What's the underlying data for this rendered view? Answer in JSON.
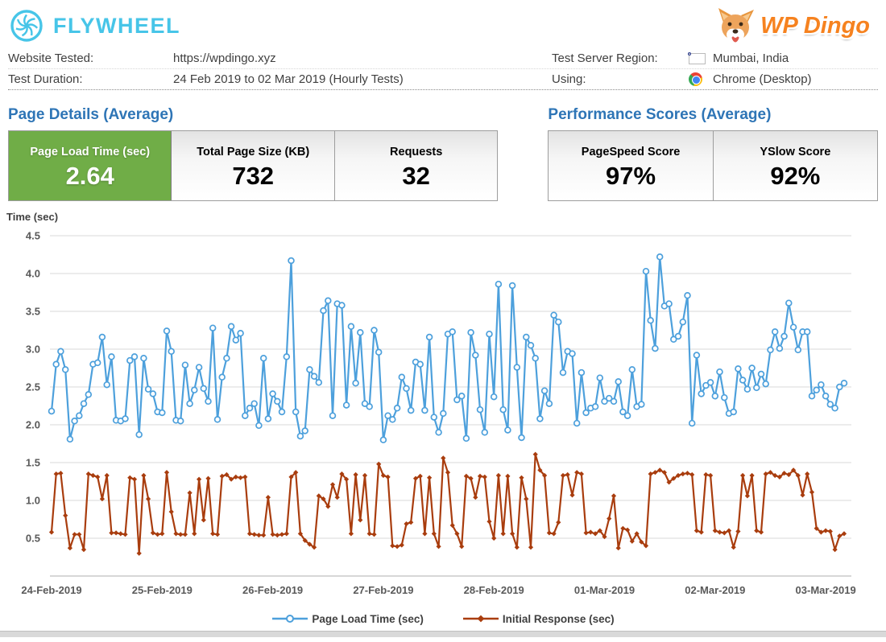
{
  "header": {
    "flywheel_logo_text": "FLYWHEEL",
    "wpdingo_logo_text": "WP Dingo",
    "info": {
      "website_label": "Website Tested:",
      "website_value": "https://wpdingo.xyz",
      "duration_label": "Test Duration:",
      "duration_value": "24 Feb 2019 to 02 Mar 2019 (Hourly Tests)",
      "region_label": "Test Server Region:",
      "region_icon": "india-flag-icon",
      "region_value": "Mumbai, India",
      "using_label": "Using:",
      "using_icon": "chrome-icon",
      "using_value": "Chrome (Desktop)"
    }
  },
  "page_details": {
    "title": "Page Details (Average)",
    "cards": [
      {
        "label": "Page Load Time (sec)",
        "value": "2.64",
        "highlight": true
      },
      {
        "label": "Total Page Size (KB)",
        "value": "732",
        "highlight": false
      },
      {
        "label": "Requests",
        "value": "32",
        "highlight": false
      }
    ]
  },
  "performance_scores": {
    "title": "Performance Scores (Average)",
    "cards": [
      {
        "label": "PageSpeed Score",
        "value": "97%"
      },
      {
        "label": "YSlow Score",
        "value": "92%"
      }
    ]
  },
  "colors": {
    "flywheel_blue": "#47c5e8",
    "dingo_orange": "#f6821f",
    "heading_blue": "#2e75b6",
    "card_green": "#70ad47",
    "axis_text": "#595959",
    "gridline": "#d9d9d9",
    "series_blue": "#4da0dc",
    "series_red": "#a93d0e"
  },
  "chart_data": {
    "type": "line",
    "title": "",
    "ylabel": "Time (sec)",
    "xlabel": "",
    "grid": "horizontal",
    "legend_position": "bottom",
    "ylim": [
      0,
      4.7
    ],
    "y_ticks": [
      "0.5",
      "1.0",
      "1.5",
      "2.0",
      "2.5",
      "3.0",
      "3.5",
      "4.0",
      "4.5"
    ],
    "x_tick_labels": [
      "24-Feb-2019",
      "25-Feb-2019",
      "26-Feb-2019",
      "27-Feb-2019",
      "28-Feb-2019",
      "01-Mar-2019",
      "02-Mar-2019",
      "03-Mar-2019"
    ],
    "points_per_day": 24,
    "sampling": "hourly",
    "series": [
      {
        "name": "Page Load Time (sec)",
        "color": "#4da0dc",
        "marker": "open-circle",
        "values": [
          2.18,
          2.8,
          2.97,
          2.73,
          1.81,
          2.05,
          2.12,
          2.28,
          2.4,
          2.8,
          2.82,
          3.16,
          2.53,
          2.9,
          2.06,
          2.05,
          2.08,
          2.85,
          2.9,
          1.87,
          2.88,
          2.47,
          2.41,
          2.17,
          2.16,
          3.24,
          2.97,
          2.06,
          2.05,
          2.79,
          2.28,
          2.46,
          2.76,
          2.48,
          2.31,
          3.28,
          2.07,
          2.63,
          2.88,
          3.3,
          3.12,
          3.21,
          2.12,
          2.22,
          2.28,
          1.99,
          2.88,
          2.08,
          2.41,
          2.31,
          2.17,
          2.9,
          4.17,
          2.17,
          1.85,
          1.92,
          2.73,
          2.64,
          2.56,
          3.51,
          3.64,
          2.12,
          3.6,
          3.58,
          2.26,
          3.3,
          2.55,
          3.22,
          2.28,
          2.24,
          3.25,
          2.96,
          1.8,
          2.12,
          2.07,
          2.22,
          2.63,
          2.48,
          2.19,
          2.83,
          2.8,
          2.19,
          3.16,
          2.1,
          1.9,
          2.15,
          3.2,
          3.23,
          2.33,
          2.38,
          1.82,
          3.22,
          2.92,
          2.2,
          1.9,
          3.2,
          2.37,
          3.86,
          2.2,
          1.93,
          3.84,
          2.76,
          1.83,
          3.16,
          3.05,
          2.88,
          2.08,
          2.45,
          2.28,
          3.45,
          3.36,
          2.69,
          2.97,
          2.94,
          2.02,
          2.69,
          2.16,
          2.22,
          2.24,
          2.62,
          2.31,
          2.35,
          2.31,
          2.57,
          2.17,
          2.12,
          2.73,
          2.24,
          2.27,
          4.03,
          3.38,
          3.01,
          4.22,
          3.57,
          3.6,
          3.13,
          3.17,
          3.36,
          3.71,
          2.02,
          2.92,
          2.41,
          2.52,
          2.56,
          2.38,
          2.7,
          2.36,
          2.15,
          2.17,
          2.74,
          2.59,
          2.47,
          2.75,
          2.49,
          2.67,
          2.54,
          2.99,
          3.23,
          3.01,
          3.17,
          3.61,
          3.29,
          2.99,
          3.23,
          3.23,
          2.38,
          2.46,
          2.53,
          2.38,
          2.27,
          2.22,
          2.5,
          2.55
        ]
      },
      {
        "name": "Initial Response (sec)",
        "color": "#a93d0e",
        "marker": "filled-diamond",
        "values": [
          0.58,
          1.35,
          1.36,
          0.8,
          0.37,
          0.55,
          0.55,
          0.35,
          1.35,
          1.33,
          1.31,
          1.02,
          1.33,
          0.57,
          0.57,
          0.56,
          0.55,
          1.3,
          1.28,
          0.3,
          1.33,
          1.02,
          0.57,
          0.55,
          0.56,
          1.37,
          0.85,
          0.56,
          0.55,
          0.55,
          1.1,
          0.56,
          1.28,
          0.74,
          1.29,
          0.56,
          0.55,
          1.32,
          1.34,
          1.28,
          1.31,
          1.3,
          1.31,
          0.56,
          0.55,
          0.54,
          0.54,
          1.04,
          0.55,
          0.54,
          0.55,
          0.56,
          1.31,
          1.37,
          0.56,
          0.47,
          0.42,
          0.38,
          1.06,
          1.02,
          0.92,
          1.21,
          1.04,
          1.35,
          1.28,
          0.56,
          1.34,
          0.74,
          1.33,
          0.56,
          0.55,
          1.48,
          1.33,
          1.31,
          0.4,
          0.39,
          0.41,
          0.69,
          0.71,
          1.29,
          1.32,
          0.56,
          1.3,
          0.56,
          0.39,
          1.56,
          1.37,
          0.67,
          0.56,
          0.39,
          1.32,
          1.29,
          1.04,
          1.32,
          1.31,
          0.72,
          0.5,
          1.33,
          0.56,
          1.32,
          0.56,
          0.38,
          1.3,
          1.02,
          0.38,
          1.61,
          1.4,
          1.33,
          0.57,
          0.56,
          0.71,
          1.33,
          1.34,
          1.07,
          1.37,
          1.35,
          0.57,
          0.58,
          0.56,
          0.6,
          0.52,
          0.76,
          1.06,
          0.37,
          0.63,
          0.61,
          0.46,
          0.56,
          0.45,
          0.4,
          1.35,
          1.37,
          1.4,
          1.37,
          1.24,
          1.29,
          1.33,
          1.35,
          1.36,
          1.34,
          0.6,
          0.58,
          1.34,
          1.33,
          0.6,
          0.58,
          0.57,
          0.6,
          0.38,
          0.59,
          1.33,
          1.06,
          1.33,
          0.6,
          0.58,
          1.35,
          1.37,
          1.33,
          1.31,
          1.36,
          1.34,
          1.4,
          1.33,
          1.07,
          1.35,
          1.11,
          0.63,
          0.58,
          0.6,
          0.59,
          0.35,
          0.53,
          0.56
        ]
      }
    ]
  }
}
